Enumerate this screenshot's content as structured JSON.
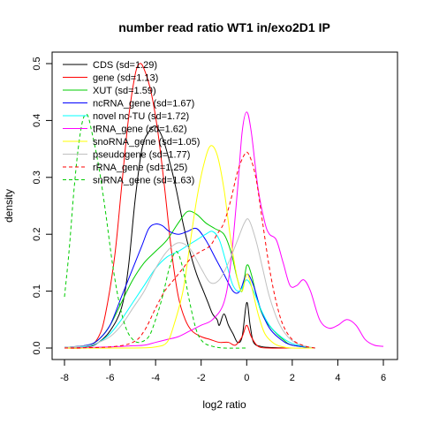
{
  "chart_data": {
    "type": "line",
    "title": "number read ratio WT1 in/exo2D1 IP",
    "xlabel": "log2 ratio",
    "ylabel": "density",
    "xlim": [
      -8,
      6
    ],
    "ylim": [
      0,
      0.5
    ],
    "xticks": [
      -8,
      -6,
      -4,
      -2,
      0,
      2,
      4,
      6
    ],
    "yticks": [
      0.0,
      0.1,
      0.2,
      0.3,
      0.4,
      0.5
    ],
    "xtick_labels": [
      "-8",
      "-6",
      "-4",
      "-2",
      "0",
      "2",
      "4",
      "6"
    ],
    "ytick_labels": [
      "0.0",
      "0.1",
      "0.2",
      "0.3",
      "0.4",
      "0.5"
    ],
    "grid": false,
    "legend_position": "top-left",
    "series": [
      {
        "name": "CDS (sd=1.29)",
        "color": "#000000",
        "dash": "solid",
        "points": [
          [
            -8,
            0.001
          ],
          [
            -7,
            0.002
          ],
          [
            -6.5,
            0.01
          ],
          [
            -6,
            0.03
          ],
          [
            -5.5,
            0.07
          ],
          [
            -5.2,
            0.14
          ],
          [
            -4.9,
            0.26
          ],
          [
            -4.6,
            0.35
          ],
          [
            -4.3,
            0.38
          ],
          [
            -4.0,
            0.39
          ],
          [
            -3.7,
            0.37
          ],
          [
            -3.4,
            0.33
          ],
          [
            -3.1,
            0.28
          ],
          [
            -2.8,
            0.22
          ],
          [
            -2.5,
            0.17
          ],
          [
            -2.2,
            0.13
          ],
          [
            -1.9,
            0.1
          ],
          [
            -1.7,
            0.08
          ],
          [
            -1.5,
            0.06
          ],
          [
            -1.3,
            0.05
          ],
          [
            -1.2,
            0.04
          ],
          [
            -1.0,
            0.06
          ],
          [
            -0.8,
            0.04
          ],
          [
            -0.6,
            0.025
          ],
          [
            -0.4,
            0.01
          ],
          [
            -0.2,
            0.02
          ],
          [
            0,
            0.08
          ],
          [
            0.15,
            0.04
          ],
          [
            0.3,
            0.01
          ],
          [
            0.6,
            0.003
          ],
          [
            1,
            0.001
          ],
          [
            2,
            0.0
          ]
        ]
      },
      {
        "name": "gene (sd=1.13)",
        "color": "#ff0000",
        "dash": "solid",
        "points": [
          [
            -8,
            0.0
          ],
          [
            -7,
            0.001
          ],
          [
            -6.5,
            0.02
          ],
          [
            -6.2,
            0.06
          ],
          [
            -5.8,
            0.16
          ],
          [
            -5.5,
            0.28
          ],
          [
            -5.2,
            0.4
          ],
          [
            -4.9,
            0.48
          ],
          [
            -4.7,
            0.5
          ],
          [
            -4.5,
            0.49
          ],
          [
            -4.2,
            0.45
          ],
          [
            -3.9,
            0.38
          ],
          [
            -3.6,
            0.28
          ],
          [
            -3.3,
            0.17
          ],
          [
            -3.0,
            0.09
          ],
          [
            -2.7,
            0.05
          ],
          [
            -2.4,
            0.03
          ],
          [
            -2.0,
            0.02
          ],
          [
            -1.6,
            0.015
          ],
          [
            -1.2,
            0.01
          ],
          [
            -0.8,
            0.01
          ],
          [
            -0.5,
            0.005
          ],
          [
            -0.2,
            0.02
          ],
          [
            0,
            0.04
          ],
          [
            0.2,
            0.02
          ],
          [
            0.5,
            0.003
          ],
          [
            1,
            0.0
          ],
          [
            2,
            0.0
          ]
        ]
      },
      {
        "name": "XUT (sd=1.59)",
        "color": "#00cc00",
        "dash": "solid",
        "points": [
          [
            -8,
            0.001
          ],
          [
            -7,
            0.005
          ],
          [
            -6.5,
            0.015
          ],
          [
            -6,
            0.04
          ],
          [
            -5.5,
            0.08
          ],
          [
            -5,
            0.12
          ],
          [
            -4.5,
            0.15
          ],
          [
            -4,
            0.17
          ],
          [
            -3.5,
            0.19
          ],
          [
            -3,
            0.22
          ],
          [
            -2.6,
            0.24
          ],
          [
            -2.2,
            0.235
          ],
          [
            -1.8,
            0.22
          ],
          [
            -1.4,
            0.21
          ],
          [
            -1.0,
            0.2
          ],
          [
            -0.7,
            0.17
          ],
          [
            -0.4,
            0.12
          ],
          [
            -0.2,
            0.1
          ],
          [
            0,
            0.145
          ],
          [
            0.2,
            0.13
          ],
          [
            0.5,
            0.08
          ],
          [
            0.8,
            0.05
          ],
          [
            1.2,
            0.03
          ],
          [
            1.6,
            0.015
          ],
          [
            2,
            0.005
          ],
          [
            3,
            0.0
          ]
        ]
      },
      {
        "name": "ncRNA_gene (sd=1.67)",
        "color": "#0000ff",
        "dash": "solid",
        "points": [
          [
            -8,
            0.001
          ],
          [
            -7,
            0.005
          ],
          [
            -6.5,
            0.015
          ],
          [
            -6,
            0.04
          ],
          [
            -5.5,
            0.09
          ],
          [
            -5,
            0.14
          ],
          [
            -4.6,
            0.18
          ],
          [
            -4.3,
            0.21
          ],
          [
            -4,
            0.218
          ],
          [
            -3.7,
            0.215
          ],
          [
            -3.4,
            0.205
          ],
          [
            -3.0,
            0.2
          ],
          [
            -2.6,
            0.205
          ],
          [
            -2.2,
            0.21
          ],
          [
            -1.8,
            0.19
          ],
          [
            -1.4,
            0.16
          ],
          [
            -1.0,
            0.13
          ],
          [
            -0.6,
            0.1
          ],
          [
            -0.3,
            0.1
          ],
          [
            0,
            0.13
          ],
          [
            0.3,
            0.11
          ],
          [
            0.6,
            0.07
          ],
          [
            1.0,
            0.035
          ],
          [
            1.5,
            0.015
          ],
          [
            2,
            0.005
          ],
          [
            3,
            0.0
          ]
        ]
      },
      {
        "name": "novel nc-TU (sd=1.72)",
        "color": "#00ffff",
        "dash": "solid",
        "points": [
          [
            -8,
            0.001
          ],
          [
            -7,
            0.003
          ],
          [
            -6.5,
            0.01
          ],
          [
            -6,
            0.025
          ],
          [
            -5.5,
            0.05
          ],
          [
            -5,
            0.08
          ],
          [
            -4.5,
            0.11
          ],
          [
            -4,
            0.14
          ],
          [
            -3.5,
            0.16
          ],
          [
            -3,
            0.17
          ],
          [
            -2.6,
            0.18
          ],
          [
            -2.2,
            0.19
          ],
          [
            -1.8,
            0.2
          ],
          [
            -1.5,
            0.205
          ],
          [
            -1.2,
            0.19
          ],
          [
            -0.9,
            0.15
          ],
          [
            -0.6,
            0.11
          ],
          [
            -0.3,
            0.1
          ],
          [
            0,
            0.12
          ],
          [
            0.3,
            0.1
          ],
          [
            0.6,
            0.07
          ],
          [
            1.0,
            0.04
          ],
          [
            1.5,
            0.02
          ],
          [
            2,
            0.008
          ],
          [
            2.5,
            0.003
          ],
          [
            3,
            0.0
          ]
        ]
      },
      {
        "name": "tRNA_gene (sd=1.62)",
        "color": "#ff00ff",
        "dash": "solid",
        "points": [
          [
            -8,
            0.0
          ],
          [
            -6,
            0.002
          ],
          [
            -5,
            0.004
          ],
          [
            -4.5,
            0.005
          ],
          [
            -4,
            0.01
          ],
          [
            -3.5,
            0.015
          ],
          [
            -3,
            0.02
          ],
          [
            -2.5,
            0.03
          ],
          [
            -2.0,
            0.04
          ],
          [
            -1.5,
            0.05
          ],
          [
            -1.0,
            0.08
          ],
          [
            -0.7,
            0.15
          ],
          [
            -0.4,
            0.28
          ],
          [
            -0.2,
            0.38
          ],
          [
            0,
            0.415
          ],
          [
            0.2,
            0.38
          ],
          [
            0.5,
            0.28
          ],
          [
            0.8,
            0.22
          ],
          [
            1.0,
            0.2
          ],
          [
            1.3,
            0.19
          ],
          [
            1.6,
            0.15
          ],
          [
            1.9,
            0.11
          ],
          [
            2.2,
            0.11
          ],
          [
            2.5,
            0.12
          ],
          [
            2.8,
            0.1
          ],
          [
            3.2,
            0.05
          ],
          [
            3.6,
            0.035
          ],
          [
            4.0,
            0.04
          ],
          [
            4.4,
            0.05
          ],
          [
            4.8,
            0.04
          ],
          [
            5.2,
            0.015
          ],
          [
            5.6,
            0.005
          ],
          [
            6,
            0.003
          ]
        ]
      },
      {
        "name": "snoRNA_gene (sd=1.05)",
        "color": "#ffff00",
        "dash": "solid",
        "points": [
          [
            -8,
            0.0
          ],
          [
            -5,
            0.0
          ],
          [
            -4,
            0.002
          ],
          [
            -3.5,
            0.01
          ],
          [
            -3.2,
            0.04
          ],
          [
            -2.8,
            0.1
          ],
          [
            -2.5,
            0.18
          ],
          [
            -2.2,
            0.26
          ],
          [
            -1.9,
            0.32
          ],
          [
            -1.6,
            0.355
          ],
          [
            -1.3,
            0.34
          ],
          [
            -1.0,
            0.28
          ],
          [
            -0.7,
            0.19
          ],
          [
            -0.4,
            0.12
          ],
          [
            -0.2,
            0.1
          ],
          [
            0,
            0.13
          ],
          [
            0.2,
            0.11
          ],
          [
            0.5,
            0.06
          ],
          [
            0.8,
            0.025
          ],
          [
            1.2,
            0.008
          ],
          [
            1.6,
            0.002
          ],
          [
            2,
            0.0
          ],
          [
            3,
            0.0
          ]
        ]
      },
      {
        "name": "pseudogene (sd=1.77)",
        "color": "#c0c0c0",
        "dash": "solid",
        "points": [
          [
            -8,
            0.001
          ],
          [
            -7,
            0.004
          ],
          [
            -6.5,
            0.01
          ],
          [
            -6,
            0.02
          ],
          [
            -5.5,
            0.04
          ],
          [
            -5,
            0.07
          ],
          [
            -4.5,
            0.1
          ],
          [
            -4,
            0.14
          ],
          [
            -3.5,
            0.17
          ],
          [
            -3.0,
            0.185
          ],
          [
            -2.5,
            0.175
          ],
          [
            -2.0,
            0.14
          ],
          [
            -1.6,
            0.115
          ],
          [
            -1.2,
            0.12
          ],
          [
            -0.8,
            0.15
          ],
          [
            -0.4,
            0.19
          ],
          [
            -0.1,
            0.22
          ],
          [
            0.1,
            0.225
          ],
          [
            0.4,
            0.19
          ],
          [
            0.7,
            0.14
          ],
          [
            1.0,
            0.09
          ],
          [
            1.4,
            0.045
          ],
          [
            1.8,
            0.02
          ],
          [
            2.2,
            0.008
          ],
          [
            2.6,
            0.003
          ],
          [
            3,
            0.0
          ]
        ]
      },
      {
        "name": "rRNA_gene (sd=1.25)",
        "color": "#ff0000",
        "dash": "dashed",
        "points": [
          [
            -8,
            0.0
          ],
          [
            -6,
            0.002
          ],
          [
            -5,
            0.01
          ],
          [
            -4.5,
            0.03
          ],
          [
            -4.0,
            0.07
          ],
          [
            -3.6,
            0.1
          ],
          [
            -3.2,
            0.12
          ],
          [
            -2.8,
            0.14
          ],
          [
            -2.4,
            0.16
          ],
          [
            -2.0,
            0.17
          ],
          [
            -1.6,
            0.18
          ],
          [
            -1.3,
            0.2
          ],
          [
            -1.0,
            0.22
          ],
          [
            -0.7,
            0.26
          ],
          [
            -0.4,
            0.31
          ],
          [
            -0.1,
            0.34
          ],
          [
            0.1,
            0.34
          ],
          [
            0.4,
            0.3
          ],
          [
            0.7,
            0.22
          ],
          [
            1.0,
            0.14
          ],
          [
            1.3,
            0.08
          ],
          [
            1.6,
            0.04
          ],
          [
            2.0,
            0.015
          ],
          [
            2.5,
            0.004
          ],
          [
            3,
            0.0
          ]
        ]
      },
      {
        "name": "snRNA_gene (sd=1.63)",
        "color": "#00cc00",
        "dash": "dashed",
        "points": [
          [
            -8,
            0.09
          ],
          [
            -7.8,
            0.17
          ],
          [
            -7.6,
            0.27
          ],
          [
            -7.4,
            0.35
          ],
          [
            -7.2,
            0.4
          ],
          [
            -7.0,
            0.41
          ],
          [
            -6.8,
            0.38
          ],
          [
            -6.5,
            0.32
          ],
          [
            -6.2,
            0.24
          ],
          [
            -5.9,
            0.15
          ],
          [
            -5.6,
            0.08
          ],
          [
            -5.3,
            0.035
          ],
          [
            -5.0,
            0.015
          ],
          [
            -4.7,
            0.01
          ],
          [
            -4.3,
            0.02
          ],
          [
            -4.0,
            0.05
          ],
          [
            -3.7,
            0.09
          ],
          [
            -3.4,
            0.14
          ],
          [
            -3.1,
            0.17
          ],
          [
            -2.8,
            0.14
          ],
          [
            -2.5,
            0.08
          ],
          [
            -2.2,
            0.03
          ],
          [
            -1.9,
            0.01
          ],
          [
            -1.5,
            0.003
          ],
          [
            -1,
            0.0
          ],
          [
            0,
            0.0
          ]
        ]
      }
    ]
  }
}
